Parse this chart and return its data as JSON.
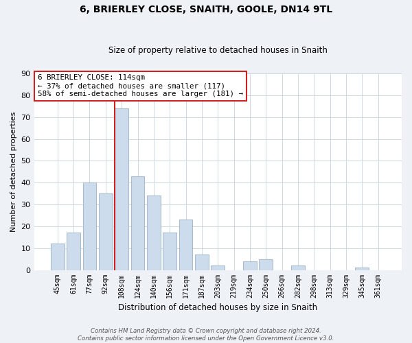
{
  "title": "6, BRIERLEY CLOSE, SNAITH, GOOLE, DN14 9TL",
  "subtitle": "Size of property relative to detached houses in Snaith",
  "xlabel": "Distribution of detached houses by size in Snaith",
  "ylabel": "Number of detached properties",
  "bar_labels": [
    "45sqm",
    "61sqm",
    "77sqm",
    "92sqm",
    "108sqm",
    "124sqm",
    "140sqm",
    "156sqm",
    "171sqm",
    "187sqm",
    "203sqm",
    "219sqm",
    "234sqm",
    "250sqm",
    "266sqm",
    "282sqm",
    "298sqm",
    "313sqm",
    "329sqm",
    "345sqm",
    "361sqm"
  ],
  "bar_values": [
    12,
    17,
    40,
    35,
    74,
    43,
    34,
    17,
    23,
    7,
    2,
    0,
    4,
    5,
    0,
    2,
    0,
    0,
    0,
    1,
    0
  ],
  "bar_color": "#ccdcec",
  "bar_edge_color": "#aabccc",
  "highlight_bar_index": 4,
  "vline_color": "#cc2222",
  "ylim": [
    0,
    90
  ],
  "yticks": [
    0,
    10,
    20,
    30,
    40,
    50,
    60,
    70,
    80,
    90
  ],
  "annotation_title": "6 BRIERLEY CLOSE: 114sqm",
  "annotation_line1": "← 37% of detached houses are smaller (117)",
  "annotation_line2": "58% of semi-detached houses are larger (181) →",
  "annotation_box_color": "#ffffff",
  "annotation_box_edge": "#cc2222",
  "footer_line1": "Contains HM Land Registry data © Crown copyright and database right 2024.",
  "footer_line2": "Contains public sector information licensed under the Open Government Licence v3.0.",
  "bg_color": "#eef2f7",
  "plot_bg_color": "#ffffff",
  "grid_color": "#ccd8e4"
}
